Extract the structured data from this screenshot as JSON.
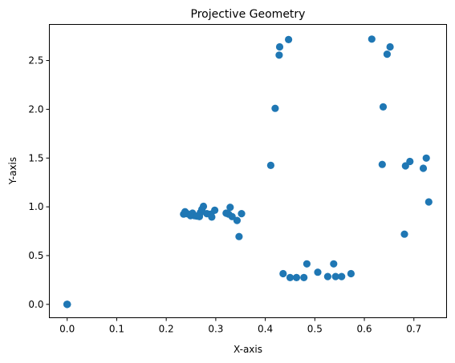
{
  "chart_data": {
    "type": "scatter",
    "title": "Projective Geometry",
    "xlabel": "X-axis",
    "ylabel": "Y-axis",
    "xlim": [
      -0.036,
      0.766
    ],
    "ylim": [
      -0.137,
      2.87
    ],
    "xticks": [
      0.0,
      0.1,
      0.2,
      0.3,
      0.4,
      0.5,
      0.6,
      0.7
    ],
    "xtick_labels": [
      "0.0",
      "0.1",
      "0.2",
      "0.3",
      "0.4",
      "0.5",
      "0.6",
      "0.7"
    ],
    "yticks": [
      0.0,
      0.5,
      1.0,
      1.5,
      2.0,
      2.5
    ],
    "ytick_labels": [
      "0.0",
      "0.5",
      "1.0",
      "1.5",
      "2.0",
      "2.5"
    ],
    "grid": false,
    "marker_color": "#1f77b4",
    "points": [
      [
        0.0,
        0.0
      ],
      [
        0.0,
        0.0
      ],
      [
        0.0,
        0.0
      ],
      [
        0.0,
        0.0
      ],
      [
        0.0,
        0.0
      ],
      [
        0.235,
        0.925
      ],
      [
        0.238,
        0.95
      ],
      [
        0.242,
        0.93
      ],
      [
        0.249,
        0.91
      ],
      [
        0.253,
        0.935
      ],
      [
        0.257,
        0.91
      ],
      [
        0.262,
        0.905
      ],
      [
        0.267,
        0.9
      ],
      [
        0.269,
        0.94
      ],
      [
        0.272,
        0.975
      ],
      [
        0.275,
        1.005
      ],
      [
        0.282,
        0.93
      ],
      [
        0.29,
        0.925
      ],
      [
        0.292,
        0.895
      ],
      [
        0.298,
        0.965
      ],
      [
        0.321,
        0.935
      ],
      [
        0.326,
        0.925
      ],
      [
        0.329,
        0.995
      ],
      [
        0.333,
        0.9
      ],
      [
        0.343,
        0.86
      ],
      [
        0.352,
        0.93
      ],
      [
        0.347,
        0.695
      ],
      [
        0.411,
        1.425
      ],
      [
        0.42,
        2.01
      ],
      [
        0.428,
        2.555
      ],
      [
        0.429,
        2.64
      ],
      [
        0.447,
        2.715
      ],
      [
        0.436,
        0.315
      ],
      [
        0.45,
        0.275
      ],
      [
        0.463,
        0.275
      ],
      [
        0.478,
        0.275
      ],
      [
        0.484,
        0.415
      ],
      [
        0.506,
        0.33
      ],
      [
        0.526,
        0.285
      ],
      [
        0.538,
        0.415
      ],
      [
        0.542,
        0.285
      ],
      [
        0.554,
        0.285
      ],
      [
        0.573,
        0.315
      ],
      [
        0.615,
        2.72
      ],
      [
        0.636,
        1.435
      ],
      [
        0.638,
        2.025
      ],
      [
        0.646,
        2.565
      ],
      [
        0.652,
        2.64
      ],
      [
        0.681,
        0.72
      ],
      [
        0.683,
        1.42
      ],
      [
        0.692,
        1.465
      ],
      [
        0.719,
        1.395
      ],
      [
        0.725,
        1.5
      ],
      [
        0.73,
        1.05
      ]
    ]
  }
}
